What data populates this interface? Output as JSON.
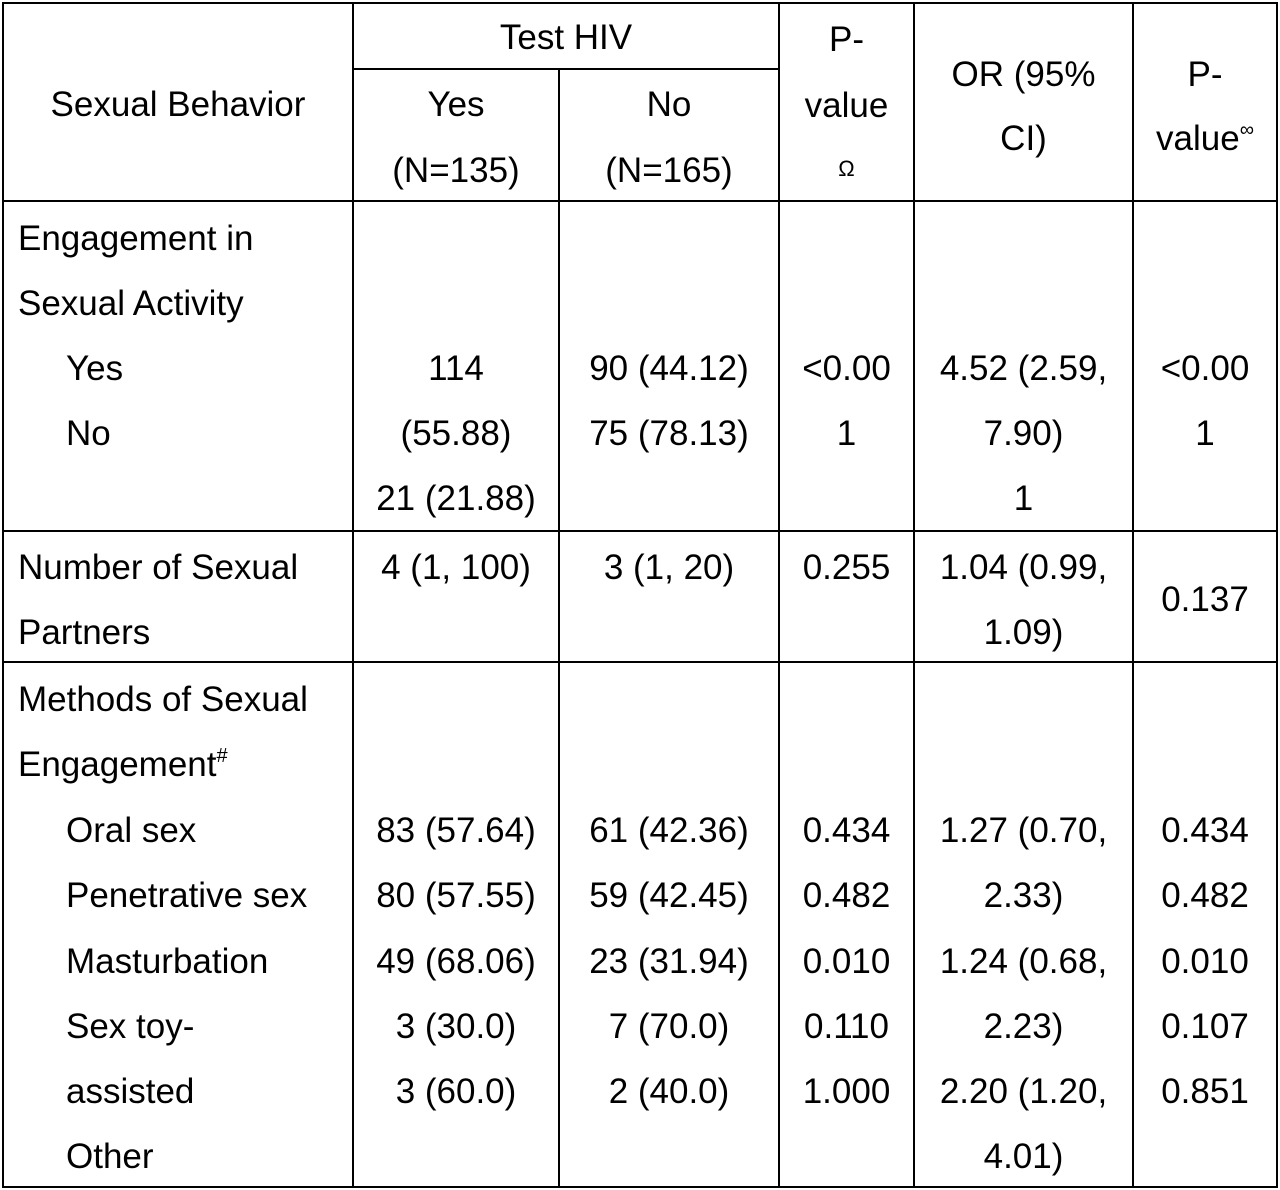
{
  "header": {
    "sexual_behavior": "Sexual Behavior",
    "test_hiv": "Test HIV",
    "yes_label": "Yes",
    "yes_n": "(N=135)",
    "no_label": "No",
    "no_n": "(N=165)",
    "pvalue_1_line1": "P-",
    "pvalue_1_line2": "value",
    "pvalue_1_mark": "Ω",
    "or_line1": "OR (95%",
    "or_line2": "CI)",
    "pvalue_2_line1": "P-",
    "pvalue_2_line2": "value",
    "pvalue_2_mark": "∞"
  },
  "engagement": {
    "title_line1": "Engagement in",
    "title_line2": "Sexual Activity",
    "row_yes": "Yes",
    "row_no": "No",
    "yes_col": [
      "114",
      "(55.88)",
      "21 (21.88)"
    ],
    "no_col": [
      "90 (44.12)",
      "75 (78.13)"
    ],
    "p1": [
      "<0.00",
      "1"
    ],
    "or": [
      "4.52 (2.59,",
      "7.90)",
      "1"
    ],
    "p2": [
      "<0.00",
      "1"
    ]
  },
  "partners": {
    "title_line1": "Number of Sexual",
    "title_line2": "Partners",
    "yes": "4 (1, 100)",
    "no": "3 (1, 20)",
    "p1": "0.255",
    "or": [
      "1.04 (0.99,",
      "1.09)"
    ],
    "p2": "0.137"
  },
  "methods": {
    "title_line1": "Methods of Sexual",
    "title_line2": "Engagement",
    "title_mark": "#",
    "labels": [
      "Oral sex",
      "Penetrative sex",
      "Masturbation",
      "Sex toy-",
      "assisted",
      "Other"
    ],
    "yes": [
      "83 (57.64)",
      "80 (57.55)",
      "49 (68.06)",
      "3 (30.0)",
      "3 (60.0)"
    ],
    "no": [
      "61 (42.36)",
      "59 (42.45)",
      "23 (31.94)",
      "7 (70.0)",
      "2 (40.0)"
    ],
    "p1": [
      "0.434",
      "0.482",
      "0.010",
      "0.110",
      "1.000"
    ],
    "or": [
      "1.27 (0.70,",
      "2.33)",
      "1.24 (0.68,",
      "2.23)",
      "2.20 (1.20,",
      "4.01)"
    ],
    "p2": [
      "0.434",
      "0.482",
      "0.010",
      "0.107",
      "0.851"
    ]
  }
}
